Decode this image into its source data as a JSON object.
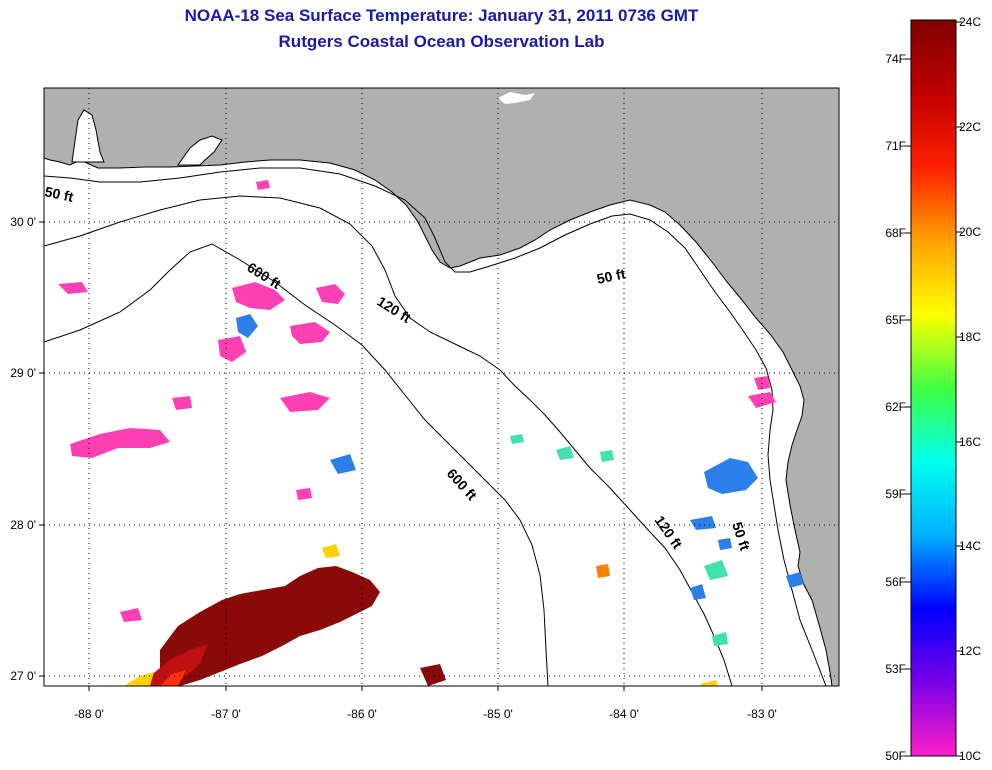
{
  "header": {
    "title": "NOAA-18 Sea Surface Temperature:  January 31, 2011 0736 GMT",
    "subtitle": "Rutgers Coastal Ocean Observation Lab"
  },
  "map": {
    "lon_ticks": [
      "-88 0'",
      "-87 0'",
      "-86 0'",
      "-85 0'",
      "-84 0'",
      "-83 0'"
    ],
    "lat_ticks": [
      "30 0'",
      "29 0'",
      "28 0'",
      "27 0'"
    ],
    "contour_labels": {
      "fifty_west": "50 ft",
      "fifty_bigbend": "50 ft",
      "fifty_south": "50 ft",
      "onetwenty_mid": "120 ft",
      "onetwenty_south": "120 ft",
      "sixhundred_north": "600 ft",
      "sixhundred_south": "600 ft"
    },
    "colors": {
      "land": "#b0b0b0",
      "ocean": "#ffffff",
      "grid": "#000000"
    }
  },
  "colorbar": {
    "celsius_labels": [
      "24C",
      "22C",
      "20C",
      "18C",
      "16C",
      "14C",
      "12C",
      "10C"
    ],
    "fahrenheit_labels": [
      "74F",
      "71F",
      "68F",
      "65F",
      "62F",
      "59F",
      "56F",
      "53F",
      "50F"
    ],
    "stops": [
      "#ff20c8",
      "#7a00e8",
      "#0000ff",
      "#00b0ff",
      "#00ffee",
      "#40ff40",
      "#ffff00",
      "#ffa000",
      "#ff2000",
      "#c00000",
      "#800000"
    ]
  }
}
